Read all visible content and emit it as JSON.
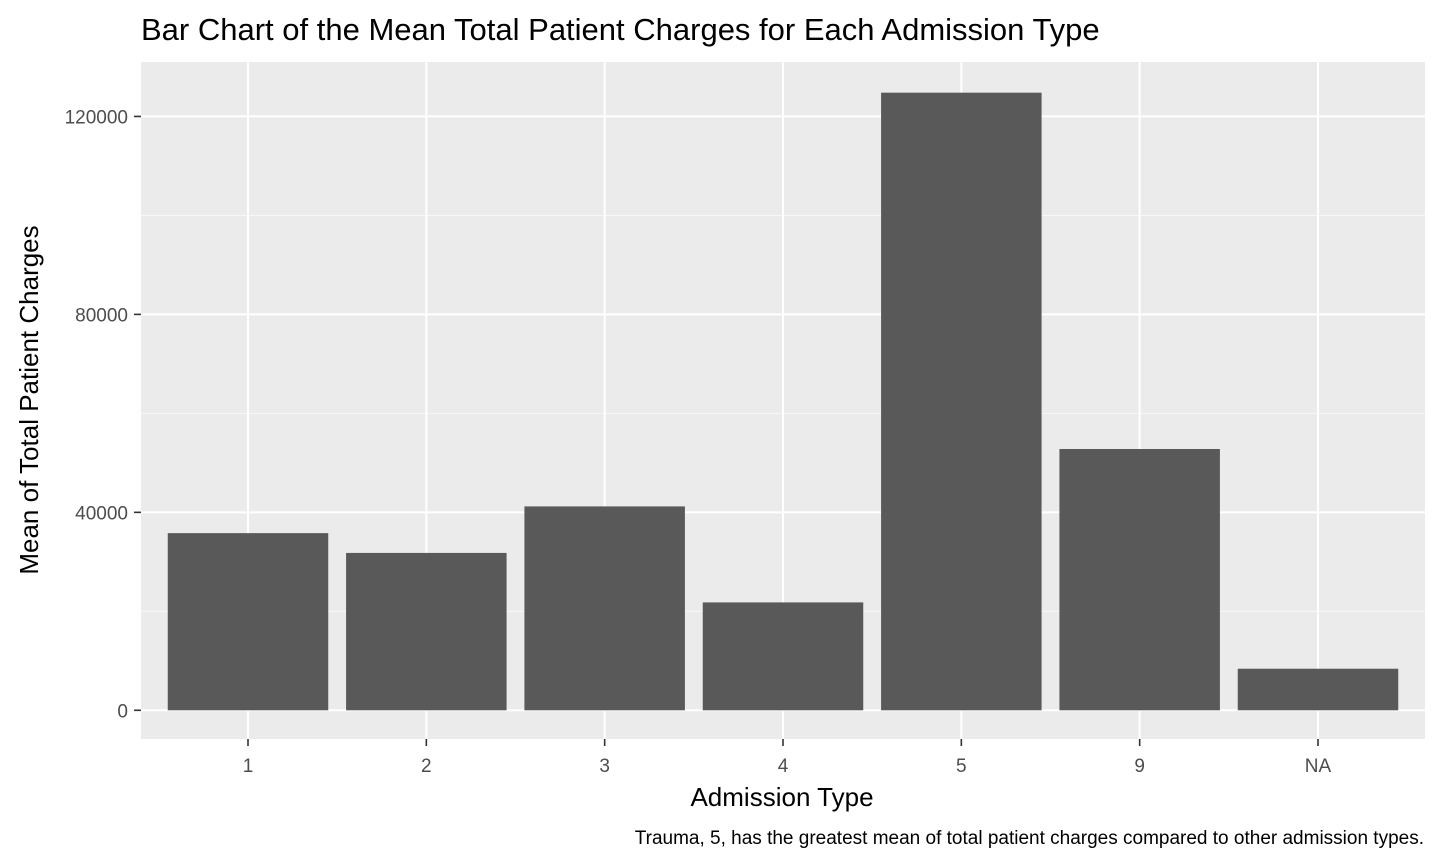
{
  "chart_data": {
    "type": "bar",
    "title": "Bar Chart of the Mean Total Patient Charges for Each Admission Type",
    "xlabel": "Admission Type",
    "ylabel": "Mean of Total Patient Charges",
    "caption": "Trauma, 5, has the greatest mean of total patient charges compared to other admission types.",
    "categories": [
      "1",
      "2",
      "3",
      "4",
      "5",
      "9",
      "NA"
    ],
    "values": [
      35800,
      31800,
      41200,
      21800,
      124800,
      52800,
      8400
    ],
    "ylim": [
      -5800,
      131000
    ],
    "yticks": [
      0,
      40000,
      80000,
      120000
    ],
    "yticks_minor": [
      20000,
      60000,
      100000
    ],
    "ytick_labels": [
      "0",
      "40000",
      "80000",
      "120000"
    ],
    "grid": true,
    "legend": "none",
    "colors": {
      "bar": "#595959",
      "panel": "#ebebeb",
      "grid_major": "#ffffff",
      "grid_minor": "#f7f7f7",
      "tick_text": "#4d4d4d"
    }
  }
}
